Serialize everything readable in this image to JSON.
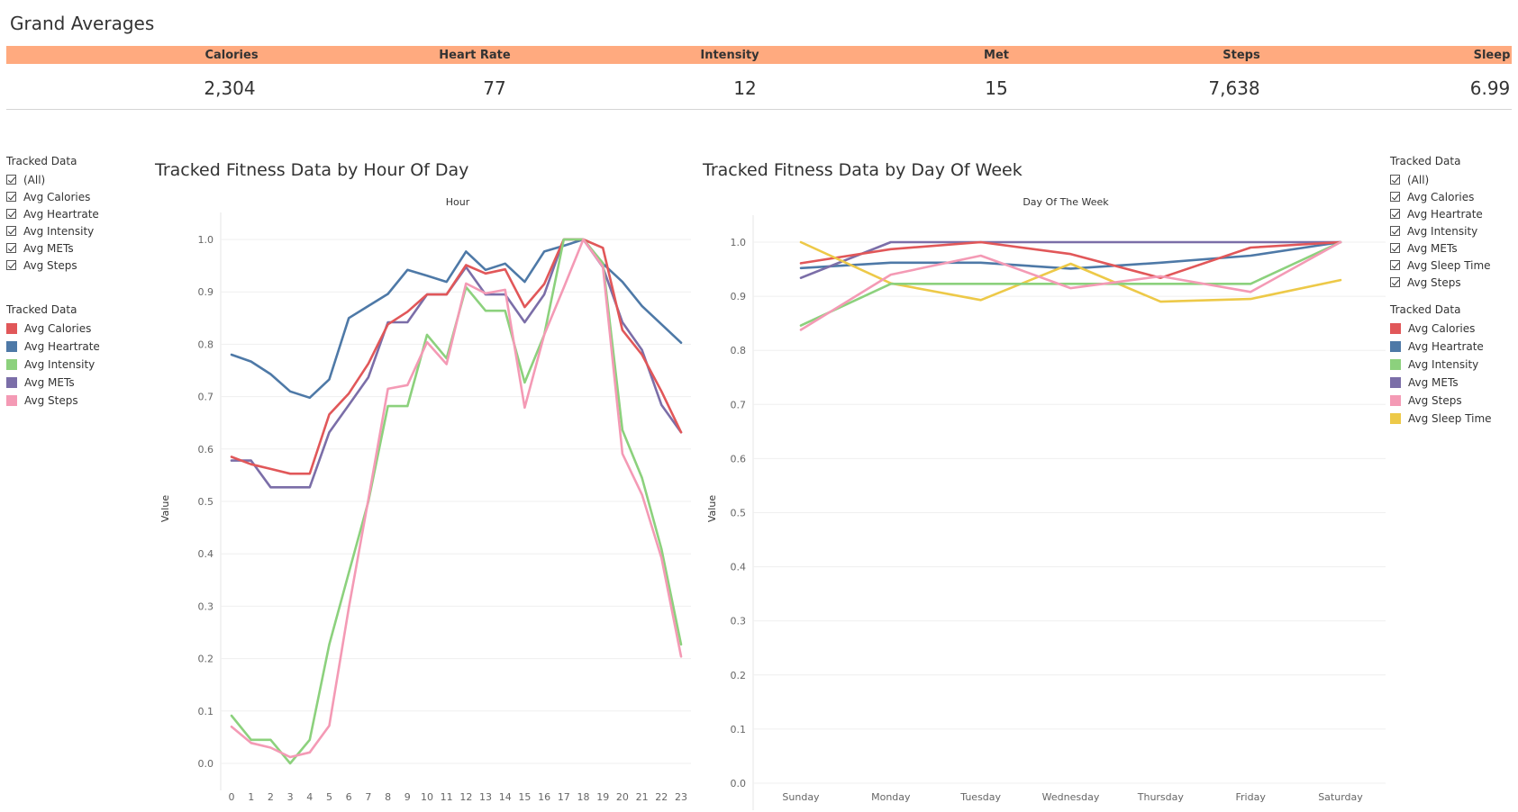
{
  "page_title": "Grand Averages",
  "kpis": [
    {
      "label": "Calories",
      "value": "2,304"
    },
    {
      "label": "Heart Rate",
      "value": "77"
    },
    {
      "label": "Intensity",
      "value": "12"
    },
    {
      "label": "Met",
      "value": "15"
    },
    {
      "label": "Steps",
      "value": "7,638"
    },
    {
      "label": "Sleep",
      "value": "6.99"
    }
  ],
  "left_filter": {
    "title": "Tracked Data",
    "items": [
      "(All)",
      "Avg Calories",
      "Avg Heartrate",
      "Avg Intensity",
      "Avg METs",
      "Avg Steps"
    ]
  },
  "left_legend": {
    "title": "Tracked Data",
    "items": [
      {
        "label": "Avg Calories",
        "color": "#e15759"
      },
      {
        "label": "Avg Heartrate",
        "color": "#4e79a7"
      },
      {
        "label": "Avg Intensity",
        "color": "#8cd17d"
      },
      {
        "label": "Avg METs",
        "color": "#7b6ea8"
      },
      {
        "label": "Avg Steps",
        "color": "#f49ab5"
      }
    ]
  },
  "right_filter": {
    "title": "Tracked Data",
    "items": [
      "(All)",
      "Avg Calories",
      "Avg Heartrate",
      "Avg Intensity",
      "Avg METs",
      "Avg Sleep Time",
      "Avg Steps"
    ]
  },
  "right_legend": {
    "title": "Tracked Data",
    "items": [
      {
        "label": "Avg Calories",
        "color": "#e15759"
      },
      {
        "label": "Avg Heartrate",
        "color": "#4e79a7"
      },
      {
        "label": "Avg Intensity",
        "color": "#8cd17d"
      },
      {
        "label": "Avg METs",
        "color": "#7b6ea8"
      },
      {
        "label": "Avg Steps",
        "color": "#f49ab5"
      },
      {
        "label": "Avg Sleep Time",
        "color": "#edc948"
      }
    ]
  },
  "chart_data": [
    {
      "type": "line",
      "title": "Tracked Fitness Data by Hour Of Day",
      "xlabel": "Hour",
      "ylabel": "Value",
      "ylim": [
        0,
        1
      ],
      "yticks": [
        "0.0",
        "0.1",
        "0.2",
        "0.3",
        "0.4",
        "0.5",
        "0.6",
        "0.7",
        "0.8",
        "0.9",
        "1.0"
      ],
      "x": [
        0,
        1,
        2,
        3,
        4,
        5,
        6,
        7,
        8,
        9,
        10,
        11,
        12,
        13,
        14,
        15,
        16,
        17,
        18,
        19,
        20,
        21,
        22,
        23
      ],
      "grid": true,
      "series": [
        {
          "name": "Avg Heartrate",
          "color": "#4e79a7",
          "values": [
            0.78,
            0.767,
            0.743,
            0.71,
            0.698,
            0.733,
            0.85,
            0.873,
            0.896,
            0.942,
            0.931,
            0.919,
            0.977,
            0.942,
            0.954,
            0.919,
            0.977,
            0.988,
            1.0,
            0.954,
            0.919,
            0.873,
            0.838,
            0.803
          ]
        },
        {
          "name": "Avg METs",
          "color": "#7b6ea8",
          "values": [
            0.578,
            0.578,
            0.527,
            0.527,
            0.527,
            0.632,
            0.684,
            0.737,
            0.842,
            0.842,
            0.895,
            0.895,
            0.947,
            0.895,
            0.895,
            0.842,
            0.895,
            1.0,
            1.0,
            0.947,
            0.842,
            0.789,
            0.684,
            0.632
          ]
        },
        {
          "name": "Avg Calories",
          "color": "#e15759",
          "values": [
            0.585,
            0.571,
            0.562,
            0.553,
            0.553,
            0.666,
            0.706,
            0.763,
            0.838,
            0.862,
            0.895,
            0.895,
            0.951,
            0.935,
            0.943,
            0.871,
            0.915,
            1.0,
            1.0,
            0.984,
            0.827,
            0.78,
            0.71,
            0.632
          ]
        },
        {
          "name": "Avg Intensity",
          "color": "#8cd17d",
          "values": [
            0.091,
            0.045,
            0.045,
            0.0,
            0.045,
            0.227,
            0.364,
            0.5,
            0.682,
            0.682,
            0.818,
            0.773,
            0.909,
            0.864,
            0.864,
            0.727,
            0.818,
            1.0,
            1.0,
            0.955,
            0.636,
            0.545,
            0.409,
            0.227
          ]
        },
        {
          "name": "Avg Steps",
          "color": "#f49ab5",
          "values": [
            0.07,
            0.039,
            0.03,
            0.012,
            0.021,
            0.072,
            0.297,
            0.504,
            0.715,
            0.722,
            0.804,
            0.762,
            0.916,
            0.897,
            0.904,
            0.679,
            0.818,
            0.908,
            1.0,
            0.948,
            0.591,
            0.513,
            0.392,
            0.204
          ]
        }
      ]
    },
    {
      "type": "line",
      "title": "Tracked Fitness Data by Day Of Week",
      "xlabel": "Day Of The Week",
      "ylabel": "Value",
      "ylim": [
        0,
        1
      ],
      "yticks": [
        "0.0",
        "0.1",
        "0.2",
        "0.3",
        "0.4",
        "0.5",
        "0.6",
        "0.7",
        "0.8",
        "0.9",
        "1.0"
      ],
      "categories": [
        "Sunday",
        "Monday",
        "Tuesday",
        "Wednesday",
        "Thursday",
        "Friday",
        "Saturday"
      ],
      "grid": true,
      "series": [
        {
          "name": "Avg Heartrate",
          "color": "#4e79a7",
          "values": [
            0.952,
            0.962,
            0.962,
            0.951,
            0.962,
            0.975,
            1.0
          ]
        },
        {
          "name": "Avg METs",
          "color": "#7b6ea8",
          "values": [
            0.934,
            1.0,
            1.0,
            1.0,
            1.0,
            1.0,
            1.0
          ]
        },
        {
          "name": "Avg Calories",
          "color": "#e15759",
          "values": [
            0.961,
            0.987,
            1.0,
            0.978,
            0.934,
            0.99,
            1.0
          ]
        },
        {
          "name": "Avg Sleep Time",
          "color": "#edc948",
          "values": [
            1.0,
            0.924,
            0.893,
            0.96,
            0.89,
            0.895,
            0.93
          ]
        },
        {
          "name": "Avg Intensity",
          "color": "#8cd17d",
          "values": [
            0.846,
            0.923,
            0.923,
            0.923,
            0.923,
            0.923,
            1.0
          ]
        },
        {
          "name": "Avg Steps",
          "color": "#f49ab5",
          "values": [
            0.838,
            0.94,
            0.975,
            0.915,
            0.937,
            0.908,
            1.0
          ]
        }
      ]
    }
  ]
}
